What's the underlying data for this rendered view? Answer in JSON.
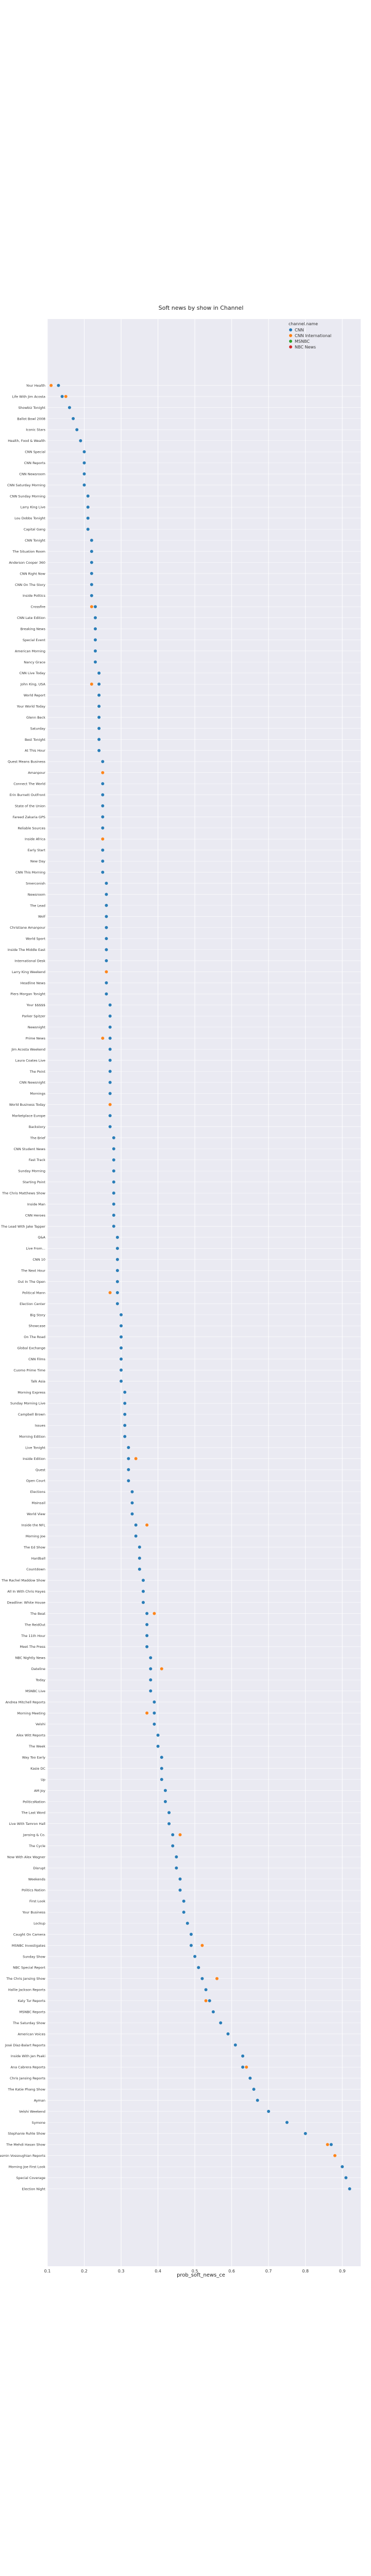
{
  "chart_data": {
    "type": "scatter",
    "title": "Soft news by show in Channel",
    "xlabel": "prob_soft_news_ce",
    "ylabel": "",
    "xlim": [
      0.1,
      0.95
    ],
    "xticks": [
      "0.1",
      "0.2",
      "0.3",
      "0.4",
      "0.5",
      "0.6",
      "0.7",
      "0.8",
      "0.9"
    ],
    "grid": true,
    "legend_title": "channel.name",
    "legend_position": "top-right",
    "series": [
      {
        "name": "CNN",
        "color": "#1f77b4"
      },
      {
        "name": "CNN International",
        "color": "#ff7f0e"
      },
      {
        "name": "MSNBC",
        "color": "#2ca02c"
      },
      {
        "name": "NBC News",
        "color": "#d62728"
      }
    ],
    "categories": [
      "Your Health",
      "Life With Jim Acosta",
      "Showbiz Tonight",
      "Ballot Bowl 2008",
      "Iconic Stars",
      "Health, Food & Wealth",
      "CNN Special",
      "CNN Reports",
      "CNN Newsroom",
      "CNN Saturday Morning",
      "CNN Sunday Morning",
      "Larry King Live",
      "Lou Dobbs Tonight",
      "Capital Gang",
      "CNN Tonight",
      "The Situation Room",
      "Anderson Cooper 360",
      "CNN Right Now",
      "CNN On The Story",
      "Inside Politics",
      "Crossfire",
      "CNN Late Edition",
      "Breaking News",
      "Special Event",
      "American Morning",
      "Nancy Grace",
      "CNN Live Today",
      "John King, USA",
      "World Report",
      "Your World Today",
      "Glenn Beck",
      "Saturday",
      "Best Tonight",
      "At This Hour",
      "Quest Means Business",
      "Amanpour",
      "Connect The World",
      "Erin Burnett OutFront",
      "State of the Union",
      "Fareed Zakaria GPS",
      "Reliable Sources",
      "Inside Africa",
      "Early Start",
      "New Day",
      "CNN This Morning",
      "Smerconish",
      "Newsroom",
      "The Lead",
      "Wolf",
      "Christiane Amanpour",
      "World Sport",
      "Inside The Middle East",
      "International Desk",
      "Larry King Weekend",
      "Headline News",
      "Piers Morgan Tonight",
      "Your $$$$$",
      "Parker Spitzer",
      "Newsnight",
      "Prime News",
      "Jim Acosta Weekend",
      "Laura Coates Live",
      "The Point",
      "CNN Newsnight",
      "Mornings",
      "World Business Today",
      "Marketplace Europe",
      "Backstory",
      "The Brief",
      "CNN Student News",
      "Fast Track",
      "Sunday Morning",
      "Starting Point",
      "The Chris Matthews Show",
      "Inside Man",
      "CNN Heroes",
      "The Lead With Jake Tapper",
      "Q&A",
      "Live From...",
      "CNN 10",
      "The Next Hour",
      "Out In The Open",
      "Political Mann",
      "Election Center",
      "Big Story",
      "Showcase",
      "On The Road",
      "Global Exchange",
      "CNN Films",
      "Cuomo Prime Time",
      "Talk Asia",
      "Morning Express",
      "Sunday Morning Live",
      "Campbell Brown",
      "Issues",
      "Morning Edition",
      "Live Tonight",
      "Inside Edition",
      "Quest",
      "Open Court",
      "Elections",
      "Mainsail",
      "World View",
      "Inside the NFL",
      "Morning Joe",
      "The Ed Show",
      "Hardball",
      "Countdown",
      "The Rachel Maddow Show",
      "All In With Chris Hayes",
      "Deadline: White House",
      "The Beat",
      "The ReidOut",
      "The 11th Hour",
      "Meet The Press",
      "NBC Nightly News",
      "Dateline",
      "Today",
      "MSNBC Live",
      "Andrea Mitchell Reports",
      "Morning Meeting",
      "Velshi",
      "Alex Witt Reports",
      "The Week",
      "Way Too Early",
      "Kasie DC",
      "Up",
      "AM Joy",
      "PoliticsNation",
      "The Last Word",
      "Live With Tamron Hall",
      "Jansing & Co.",
      "The Cycle",
      "Now With Alex Wagner",
      "Disrupt",
      "Weekends",
      "Politics Nation",
      "First Look",
      "Your Business",
      "Lockup",
      "Caught On Camera",
      "MSNBC Investigates",
      "Sunday Show",
      "NBC Special Report",
      "The Chris Jansing Show",
      "Hallie Jackson Reports",
      "Katy Tur Reports",
      "MSNBC Reports",
      "The Saturday Show",
      "American Voices",
      "José Díaz-Balart Reports",
      "Inside With Jen Psaki",
      "Ana Cabrera Reports",
      "Chris Jansing Reports",
      "The Katie Phang Show",
      "Ayman",
      "Velshi Weekend",
      "Symone",
      "Stephanie Ruhle Show",
      "The Mehdi Hasan Show",
      "Yasmin Vossoughian Reports",
      "Morning Joe First Look",
      "Special Coverage",
      "Election Night"
    ],
    "points": [
      {
        "y": "Your Health",
        "x": 0.11,
        "s": 1
      },
      {
        "y": "Your Health",
        "x": 0.13,
        "s": 0
      },
      {
        "y": "Life With Jim Acosta",
        "x": 0.15,
        "s": 1
      },
      {
        "y": "Life With Jim Acosta",
        "x": 0.14,
        "s": 0
      },
      {
        "y": "Showbiz Tonight",
        "x": 0.16,
        "s": 0
      },
      {
        "y": "Ballot Bowl 2008",
        "x": 0.17,
        "s": 0
      },
      {
        "y": "Iconic Stars",
        "x": 0.18,
        "s": 0
      },
      {
        "y": "Health, Food & Wealth",
        "x": 0.19,
        "s": 0
      },
      {
        "y": "CNN Special",
        "x": 0.2,
        "s": 0
      },
      {
        "y": "CNN Reports",
        "x": 0.2,
        "s": 0
      },
      {
        "y": "CNN Newsroom",
        "x": 0.2,
        "s": 0
      },
      {
        "y": "CNN Saturday Morning",
        "x": 0.2,
        "s": 0
      },
      {
        "y": "CNN Sunday Morning",
        "x": 0.21,
        "s": 0
      },
      {
        "y": "Larry King Live",
        "x": 0.21,
        "s": 0
      },
      {
        "y": "Lou Dobbs Tonight",
        "x": 0.21,
        "s": 0
      },
      {
        "y": "Capital Gang",
        "x": 0.21,
        "s": 0
      },
      {
        "y": "CNN Tonight",
        "x": 0.22,
        "s": 0
      },
      {
        "y": "The Situation Room",
        "x": 0.22,
        "s": 0
      },
      {
        "y": "Anderson Cooper 360",
        "x": 0.22,
        "s": 0
      },
      {
        "y": "CNN Right Now",
        "x": 0.22,
        "s": 0
      },
      {
        "y": "CNN On The Story",
        "x": 0.22,
        "s": 0
      },
      {
        "y": "Inside Politics",
        "x": 0.22,
        "s": 0
      },
      {
        "y": "Crossfire",
        "x": 0.23,
        "s": 0
      },
      {
        "y": "Crossfire",
        "x": 0.22,
        "s": 1
      },
      {
        "y": "CNN Late Edition",
        "x": 0.23,
        "s": 0
      },
      {
        "y": "Breaking News",
        "x": 0.23,
        "s": 0
      },
      {
        "y": "Special Event",
        "x": 0.23,
        "s": 0
      },
      {
        "y": "American Morning",
        "x": 0.23,
        "s": 0
      },
      {
        "y": "Nancy Grace",
        "x": 0.23,
        "s": 0
      },
      {
        "y": "CNN Live Today",
        "x": 0.24,
        "s": 0
      },
      {
        "y": "John King, USA",
        "x": 0.24,
        "s": 0
      },
      {
        "y": "John King, USA",
        "x": 0.22,
        "s": 1
      },
      {
        "y": "World Report",
        "x": 0.24,
        "s": 0
      },
      {
        "y": "Your World Today",
        "x": 0.24,
        "s": 0
      },
      {
        "y": "Glenn Beck",
        "x": 0.24,
        "s": 0
      },
      {
        "y": "Saturday",
        "x": 0.24,
        "s": 0
      },
      {
        "y": "Best Tonight",
        "x": 0.24,
        "s": 0
      },
      {
        "y": "At This Hour",
        "x": 0.24,
        "s": 0
      },
      {
        "y": "Quest Means Business",
        "x": 0.25,
        "s": 0
      },
      {
        "y": "Amanpour",
        "x": 0.25,
        "s": 1
      },
      {
        "y": "Connect The World",
        "x": 0.25,
        "s": 0
      },
      {
        "y": "Erin Burnett OutFront",
        "x": 0.25,
        "s": 0
      },
      {
        "y": "State of the Union",
        "x": 0.25,
        "s": 0
      },
      {
        "y": "Fareed Zakaria GPS",
        "x": 0.25,
        "s": 0
      },
      {
        "y": "Reliable Sources",
        "x": 0.25,
        "s": 0
      },
      {
        "y": "Inside Africa",
        "x": 0.25,
        "s": 1
      },
      {
        "y": "Early Start",
        "x": 0.25,
        "s": 0
      },
      {
        "y": "New Day",
        "x": 0.25,
        "s": 0
      },
      {
        "y": "CNN This Morning",
        "x": 0.25,
        "s": 0
      },
      {
        "y": "Smerconish",
        "x": 0.26,
        "s": 0
      },
      {
        "y": "Newsroom",
        "x": 0.26,
        "s": 0
      },
      {
        "y": "The Lead",
        "x": 0.26,
        "s": 0
      },
      {
        "y": "Wolf",
        "x": 0.26,
        "s": 0
      },
      {
        "y": "Christiane Amanpour",
        "x": 0.26,
        "s": 0
      },
      {
        "y": "World Sport",
        "x": 0.26,
        "s": 0
      },
      {
        "y": "Inside The Middle East",
        "x": 0.26,
        "s": 0
      },
      {
        "y": "International Desk",
        "x": 0.26,
        "s": 0
      },
      {
        "y": "Larry King Weekend",
        "x": 0.26,
        "s": 1
      },
      {
        "y": "Headline News",
        "x": 0.26,
        "s": 0
      },
      {
        "y": "Piers Morgan Tonight",
        "x": 0.26,
        "s": 0
      },
      {
        "y": "Your $$$$$",
        "x": 0.27,
        "s": 0
      },
      {
        "y": "Parker Spitzer",
        "x": 0.27,
        "s": 0
      },
      {
        "y": "Newsnight",
        "x": 0.27,
        "s": 0
      },
      {
        "y": "Prime News",
        "x": 0.27,
        "s": 0
      },
      {
        "y": "Prime News",
        "x": 0.25,
        "s": 1
      },
      {
        "y": "Jim Acosta Weekend",
        "x": 0.27,
        "s": 0
      },
      {
        "y": "Laura Coates Live",
        "x": 0.27,
        "s": 0
      },
      {
        "y": "The Point",
        "x": 0.27,
        "s": 0
      },
      {
        "y": "CNN Newsnight",
        "x": 0.27,
        "s": 0
      },
      {
        "y": "Mornings",
        "x": 0.27,
        "s": 0
      },
      {
        "y": "World Business Today",
        "x": 0.27,
        "s": 1
      },
      {
        "y": "Marketplace Europe",
        "x": 0.27,
        "s": 0
      },
      {
        "y": "Backstory",
        "x": 0.27,
        "s": 0
      },
      {
        "y": "The Brief",
        "x": 0.28,
        "s": 0
      },
      {
        "y": "CNN Student News",
        "x": 0.28,
        "s": 0
      },
      {
        "y": "Fast Track",
        "x": 0.28,
        "s": 0
      },
      {
        "y": "Sunday Morning",
        "x": 0.28,
        "s": 0
      },
      {
        "y": "Starting Point",
        "x": 0.28,
        "s": 0
      },
      {
        "y": "The Chris Matthews Show",
        "x": 0.28,
        "s": 0
      },
      {
        "y": "Inside Man",
        "x": 0.28,
        "s": 0
      },
      {
        "y": "CNN Heroes",
        "x": 0.28,
        "s": 0
      },
      {
        "y": "The Lead With Jake Tapper",
        "x": 0.28,
        "s": 0
      },
      {
        "y": "Q&A",
        "x": 0.29,
        "s": 0
      },
      {
        "y": "Live From...",
        "x": 0.29,
        "s": 0
      },
      {
        "y": "CNN 10",
        "x": 0.29,
        "s": 0
      },
      {
        "y": "The Next Hour",
        "x": 0.29,
        "s": 0
      },
      {
        "y": "Out In The Open",
        "x": 0.29,
        "s": 0
      },
      {
        "y": "Political Mann",
        "x": 0.29,
        "s": 0
      },
      {
        "y": "Political Mann",
        "x": 0.27,
        "s": 1
      },
      {
        "y": "Election Center",
        "x": 0.29,
        "s": 0
      },
      {
        "y": "Big Story",
        "x": 0.3,
        "s": 0
      },
      {
        "y": "Showcase",
        "x": 0.3,
        "s": 0
      },
      {
        "y": "On The Road",
        "x": 0.3,
        "s": 0
      },
      {
        "y": "Global Exchange",
        "x": 0.3,
        "s": 0
      },
      {
        "y": "CNN Films",
        "x": 0.3,
        "s": 0
      },
      {
        "y": "Cuomo Prime Time",
        "x": 0.3,
        "s": 0
      },
      {
        "y": "Talk Asia",
        "x": 0.3,
        "s": 0
      },
      {
        "y": "Morning Express",
        "x": 0.31,
        "s": 0
      },
      {
        "y": "Sunday Morning Live",
        "x": 0.31,
        "s": 0
      },
      {
        "y": "Campbell Brown",
        "x": 0.31,
        "s": 0
      },
      {
        "y": "Issues",
        "x": 0.31,
        "s": 0
      },
      {
        "y": "Morning Edition",
        "x": 0.31,
        "s": 0
      },
      {
        "y": "Live Tonight",
        "x": 0.32,
        "s": 0
      },
      {
        "y": "Inside Edition",
        "x": 0.32,
        "s": 0
      },
      {
        "y": "Inside Edition",
        "x": 0.34,
        "s": 1
      },
      {
        "y": "Quest",
        "x": 0.32,
        "s": 0
      },
      {
        "y": "Open Court",
        "x": 0.32,
        "s": 0
      },
      {
        "y": "Elections",
        "x": 0.33,
        "s": 0
      },
      {
        "y": "Mainsail",
        "x": 0.33,
        "s": 0
      },
      {
        "y": "World View",
        "x": 0.33,
        "s": 0
      },
      {
        "y": "Inside the NFL",
        "x": 0.34,
        "s": 0
      },
      {
        "y": "Inside the NFL",
        "x": 0.37,
        "s": 1
      },
      {
        "y": "Morning Joe",
        "x": 0.34,
        "s": 0
      },
      {
        "y": "The Ed Show",
        "x": 0.35,
        "s": 0
      },
      {
        "y": "Hardball",
        "x": 0.35,
        "s": 0
      },
      {
        "y": "Countdown",
        "x": 0.35,
        "s": 0
      },
      {
        "y": "The Rachel Maddow Show",
        "x": 0.36,
        "s": 0
      },
      {
        "y": "All In With Chris Hayes",
        "x": 0.36,
        "s": 0
      },
      {
        "y": "Deadline: White House",
        "x": 0.36,
        "s": 0
      },
      {
        "y": "The Beat",
        "x": 0.37,
        "s": 0
      },
      {
        "y": "The Beat",
        "x": 0.39,
        "s": 1
      },
      {
        "y": "The ReidOut",
        "x": 0.37,
        "s": 0
      },
      {
        "y": "The 11th Hour",
        "x": 0.37,
        "s": 0
      },
      {
        "y": "Meet The Press",
        "x": 0.37,
        "s": 0
      },
      {
        "y": "NBC Nightly News",
        "x": 0.38,
        "s": 0
      },
      {
        "y": "Dateline",
        "x": 0.38,
        "s": 0
      },
      {
        "y": "Dateline",
        "x": 0.41,
        "s": 1
      },
      {
        "y": "Today",
        "x": 0.38,
        "s": 0
      },
      {
        "y": "MSNBC Live",
        "x": 0.38,
        "s": 0
      },
      {
        "y": "Andrea Mitchell Reports",
        "x": 0.39,
        "s": 0
      },
      {
        "y": "Morning Meeting",
        "x": 0.39,
        "s": 0
      },
      {
        "y": "Morning Meeting",
        "x": 0.37,
        "s": 1
      },
      {
        "y": "Velshi",
        "x": 0.39,
        "s": 0
      },
      {
        "y": "Alex Witt Reports",
        "x": 0.4,
        "s": 0
      },
      {
        "y": "The Week",
        "x": 0.4,
        "s": 0
      },
      {
        "y": "Way Too Early",
        "x": 0.41,
        "s": 0
      },
      {
        "y": "Kasie DC",
        "x": 0.41,
        "s": 0
      },
      {
        "y": "Up",
        "x": 0.41,
        "s": 0
      },
      {
        "y": "AM Joy",
        "x": 0.42,
        "s": 0
      },
      {
        "y": "PoliticsNation",
        "x": 0.42,
        "s": 0
      },
      {
        "y": "The Last Word",
        "x": 0.43,
        "s": 0
      },
      {
        "y": "Live With Tamron Hall",
        "x": 0.43,
        "s": 0
      },
      {
        "y": "Jansing & Co.",
        "x": 0.44,
        "s": 0
      },
      {
        "y": "Jansing & Co.",
        "x": 0.46,
        "s": 1
      },
      {
        "y": "The Cycle",
        "x": 0.44,
        "s": 0
      },
      {
        "y": "Now With Alex Wagner",
        "x": 0.45,
        "s": 0
      },
      {
        "y": "Disrupt",
        "x": 0.45,
        "s": 0
      },
      {
        "y": "Weekends",
        "x": 0.46,
        "s": 0
      },
      {
        "y": "Politics Nation",
        "x": 0.46,
        "s": 0
      },
      {
        "y": "First Look",
        "x": 0.47,
        "s": 0
      },
      {
        "y": "Your Business",
        "x": 0.47,
        "s": 0
      },
      {
        "y": "Lockup",
        "x": 0.48,
        "s": 0
      },
      {
        "y": "Caught On Camera",
        "x": 0.49,
        "s": 0
      },
      {
        "y": "MSNBC Investigates",
        "x": 0.49,
        "s": 0
      },
      {
        "y": "MSNBC Investigates",
        "x": 0.52,
        "s": 1
      },
      {
        "y": "Sunday Show",
        "x": 0.5,
        "s": 0
      },
      {
        "y": "NBC Special Report",
        "x": 0.51,
        "s": 0
      },
      {
        "y": "The Chris Jansing Show",
        "x": 0.52,
        "s": 0
      },
      {
        "y": "The Chris Jansing Show",
        "x": 0.56,
        "s": 1
      },
      {
        "y": "Hallie Jackson Reports",
        "x": 0.53,
        "s": 0
      },
      {
        "y": "Katy Tur Reports",
        "x": 0.54,
        "s": 0
      },
      {
        "y": "Katy Tur Reports",
        "x": 0.53,
        "s": 1
      },
      {
        "y": "MSNBC Reports",
        "x": 0.55,
        "s": 0
      },
      {
        "y": "The Saturday Show",
        "x": 0.57,
        "s": 0
      },
      {
        "y": "American Voices",
        "x": 0.59,
        "s": 0
      },
      {
        "y": "José Díaz-Balart Reports",
        "x": 0.61,
        "s": 0
      },
      {
        "y": "Inside With Jen Psaki",
        "x": 0.63,
        "s": 0
      },
      {
        "y": "Ana Cabrera Reports",
        "x": 0.63,
        "s": 0
      },
      {
        "y": "Ana Cabrera Reports",
        "x": 0.64,
        "s": 1
      },
      {
        "y": "Chris Jansing Reports",
        "x": 0.65,
        "s": 0
      },
      {
        "y": "The Katie Phang Show",
        "x": 0.66,
        "s": 0
      },
      {
        "y": "Ayman",
        "x": 0.67,
        "s": 0
      },
      {
        "y": "Velshi Weekend",
        "x": 0.7,
        "s": 0
      },
      {
        "y": "Symone",
        "x": 0.75,
        "s": 0
      },
      {
        "y": "Stephanie Ruhle Show",
        "x": 0.8,
        "s": 0
      },
      {
        "y": "The Mehdi Hasan Show",
        "x": 0.87,
        "s": 0
      },
      {
        "y": "The Mehdi Hasan Show",
        "x": 0.86,
        "s": 1
      },
      {
        "y": "Yasmin Vossoughian Reports",
        "x": 0.88,
        "s": 1
      },
      {
        "y": "Morning Joe First Look",
        "x": 0.9,
        "s": 0
      },
      {
        "y": "Special Coverage",
        "x": 0.91,
        "s": 0
      },
      {
        "y": "Election Night",
        "x": 0.92,
        "s": 0
      }
    ]
  }
}
